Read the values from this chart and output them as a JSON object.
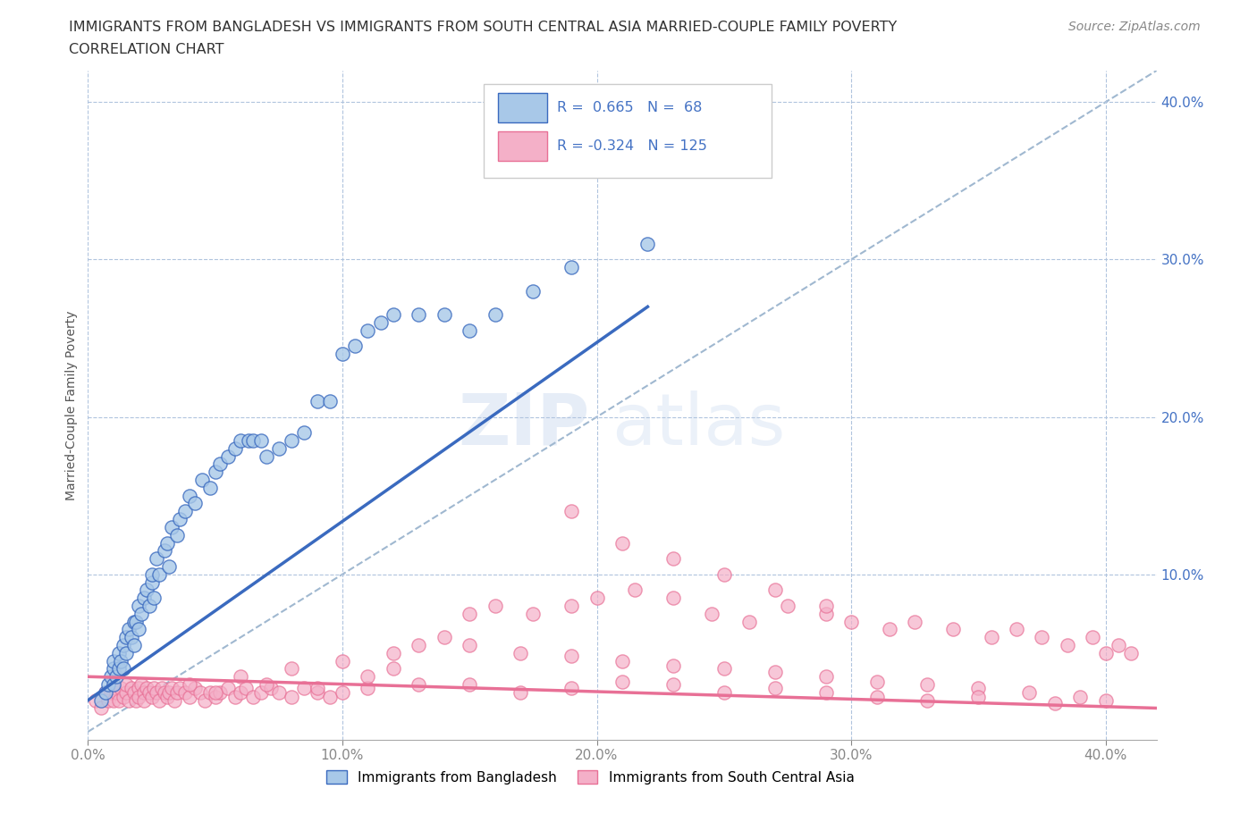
{
  "title_line1": "IMMIGRANTS FROM BANGLADESH VS IMMIGRANTS FROM SOUTH CENTRAL ASIA MARRIED-COUPLE FAMILY POVERTY",
  "title_line2": "CORRELATION CHART",
  "source_text": "Source: ZipAtlas.com",
  "ylabel": "Married-Couple Family Poverty",
  "xlim": [
    0.0,
    0.42
  ],
  "ylim": [
    -0.005,
    0.42
  ],
  "xtick_values": [
    0.0,
    0.1,
    0.2,
    0.3,
    0.4
  ],
  "ytick_values": [
    0.1,
    0.2,
    0.3,
    0.4
  ],
  "grid_color": "#b0c4de",
  "background_color": "#ffffff",
  "watermark_zip": "ZIP",
  "watermark_atlas": "atlas",
  "color_blue": "#a8c8e8",
  "color_pink": "#f4b0c8",
  "line_blue": "#3a6abf",
  "line_pink": "#e87096",
  "line_dashed_color": "#a0b8d0",
  "ytick_color": "#4472c4",
  "xtick_color": "#888888",
  "scatter_blue_x": [
    0.005,
    0.007,
    0.008,
    0.009,
    0.01,
    0.01,
    0.01,
    0.011,
    0.012,
    0.012,
    0.013,
    0.014,
    0.014,
    0.015,
    0.015,
    0.016,
    0.017,
    0.018,
    0.018,
    0.019,
    0.02,
    0.02,
    0.021,
    0.022,
    0.023,
    0.024,
    0.025,
    0.025,
    0.026,
    0.027,
    0.028,
    0.03,
    0.031,
    0.032,
    0.033,
    0.035,
    0.036,
    0.038,
    0.04,
    0.042,
    0.045,
    0.048,
    0.05,
    0.052,
    0.055,
    0.058,
    0.06,
    0.063,
    0.065,
    0.068,
    0.07,
    0.075,
    0.08,
    0.085,
    0.09,
    0.095,
    0.1,
    0.105,
    0.11,
    0.115,
    0.12,
    0.13,
    0.14,
    0.15,
    0.16,
    0.175,
    0.19,
    0.22
  ],
  "scatter_blue_y": [
    0.02,
    0.025,
    0.03,
    0.035,
    0.03,
    0.04,
    0.045,
    0.035,
    0.04,
    0.05,
    0.045,
    0.04,
    0.055,
    0.05,
    0.06,
    0.065,
    0.06,
    0.07,
    0.055,
    0.07,
    0.065,
    0.08,
    0.075,
    0.085,
    0.09,
    0.08,
    0.095,
    0.1,
    0.085,
    0.11,
    0.1,
    0.115,
    0.12,
    0.105,
    0.13,
    0.125,
    0.135,
    0.14,
    0.15,
    0.145,
    0.16,
    0.155,
    0.165,
    0.17,
    0.175,
    0.18,
    0.185,
    0.185,
    0.185,
    0.185,
    0.175,
    0.18,
    0.185,
    0.19,
    0.21,
    0.21,
    0.24,
    0.245,
    0.255,
    0.26,
    0.265,
    0.265,
    0.265,
    0.255,
    0.265,
    0.28,
    0.295,
    0.31
  ],
  "scatter_pink_x": [
    0.003,
    0.005,
    0.007,
    0.008,
    0.009,
    0.01,
    0.01,
    0.011,
    0.012,
    0.013,
    0.014,
    0.015,
    0.015,
    0.016,
    0.017,
    0.018,
    0.019,
    0.02,
    0.02,
    0.021,
    0.022,
    0.022,
    0.023,
    0.024,
    0.025,
    0.026,
    0.027,
    0.028,
    0.029,
    0.03,
    0.031,
    0.032,
    0.033,
    0.034,
    0.035,
    0.036,
    0.038,
    0.04,
    0.042,
    0.044,
    0.046,
    0.048,
    0.05,
    0.052,
    0.055,
    0.058,
    0.06,
    0.062,
    0.065,
    0.068,
    0.072,
    0.075,
    0.08,
    0.085,
    0.09,
    0.095,
    0.1,
    0.11,
    0.12,
    0.13,
    0.14,
    0.15,
    0.16,
    0.175,
    0.19,
    0.2,
    0.215,
    0.23,
    0.245,
    0.26,
    0.275,
    0.29,
    0.3,
    0.315,
    0.325,
    0.34,
    0.355,
    0.365,
    0.375,
    0.385,
    0.395,
    0.4,
    0.405,
    0.41,
    0.04,
    0.06,
    0.08,
    0.1,
    0.12,
    0.15,
    0.17,
    0.19,
    0.21,
    0.23,
    0.25,
    0.27,
    0.29,
    0.31,
    0.33,
    0.35,
    0.37,
    0.39,
    0.19,
    0.21,
    0.23,
    0.25,
    0.27,
    0.29,
    0.05,
    0.07,
    0.09,
    0.11,
    0.13,
    0.15,
    0.17,
    0.19,
    0.21,
    0.23,
    0.25,
    0.27,
    0.29,
    0.31,
    0.33,
    0.35,
    0.38,
    0.4
  ],
  "scatter_pink_y": [
    0.02,
    0.015,
    0.025,
    0.02,
    0.025,
    0.02,
    0.03,
    0.025,
    0.02,
    0.028,
    0.022,
    0.025,
    0.03,
    0.02,
    0.028,
    0.025,
    0.02,
    0.028,
    0.022,
    0.03,
    0.025,
    0.02,
    0.028,
    0.025,
    0.022,
    0.028,
    0.025,
    0.02,
    0.028,
    0.025,
    0.022,
    0.025,
    0.028,
    0.02,
    0.025,
    0.028,
    0.025,
    0.022,
    0.028,
    0.025,
    0.02,
    0.025,
    0.022,
    0.025,
    0.028,
    0.022,
    0.025,
    0.028,
    0.022,
    0.025,
    0.028,
    0.025,
    0.022,
    0.028,
    0.025,
    0.022,
    0.025,
    0.028,
    0.04,
    0.055,
    0.06,
    0.075,
    0.08,
    0.075,
    0.08,
    0.085,
    0.09,
    0.085,
    0.075,
    0.07,
    0.08,
    0.075,
    0.07,
    0.065,
    0.07,
    0.065,
    0.06,
    0.065,
    0.06,
    0.055,
    0.06,
    0.05,
    0.055,
    0.05,
    0.03,
    0.035,
    0.04,
    0.045,
    0.05,
    0.055,
    0.05,
    0.048,
    0.045,
    0.042,
    0.04,
    0.038,
    0.035,
    0.032,
    0.03,
    0.028,
    0.025,
    0.022,
    0.14,
    0.12,
    0.11,
    0.1,
    0.09,
    0.08,
    0.025,
    0.03,
    0.028,
    0.035,
    0.03,
    0.03,
    0.025,
    0.028,
    0.032,
    0.03,
    0.025,
    0.028,
    0.025,
    0.022,
    0.02,
    0.022,
    0.018,
    0.02
  ]
}
